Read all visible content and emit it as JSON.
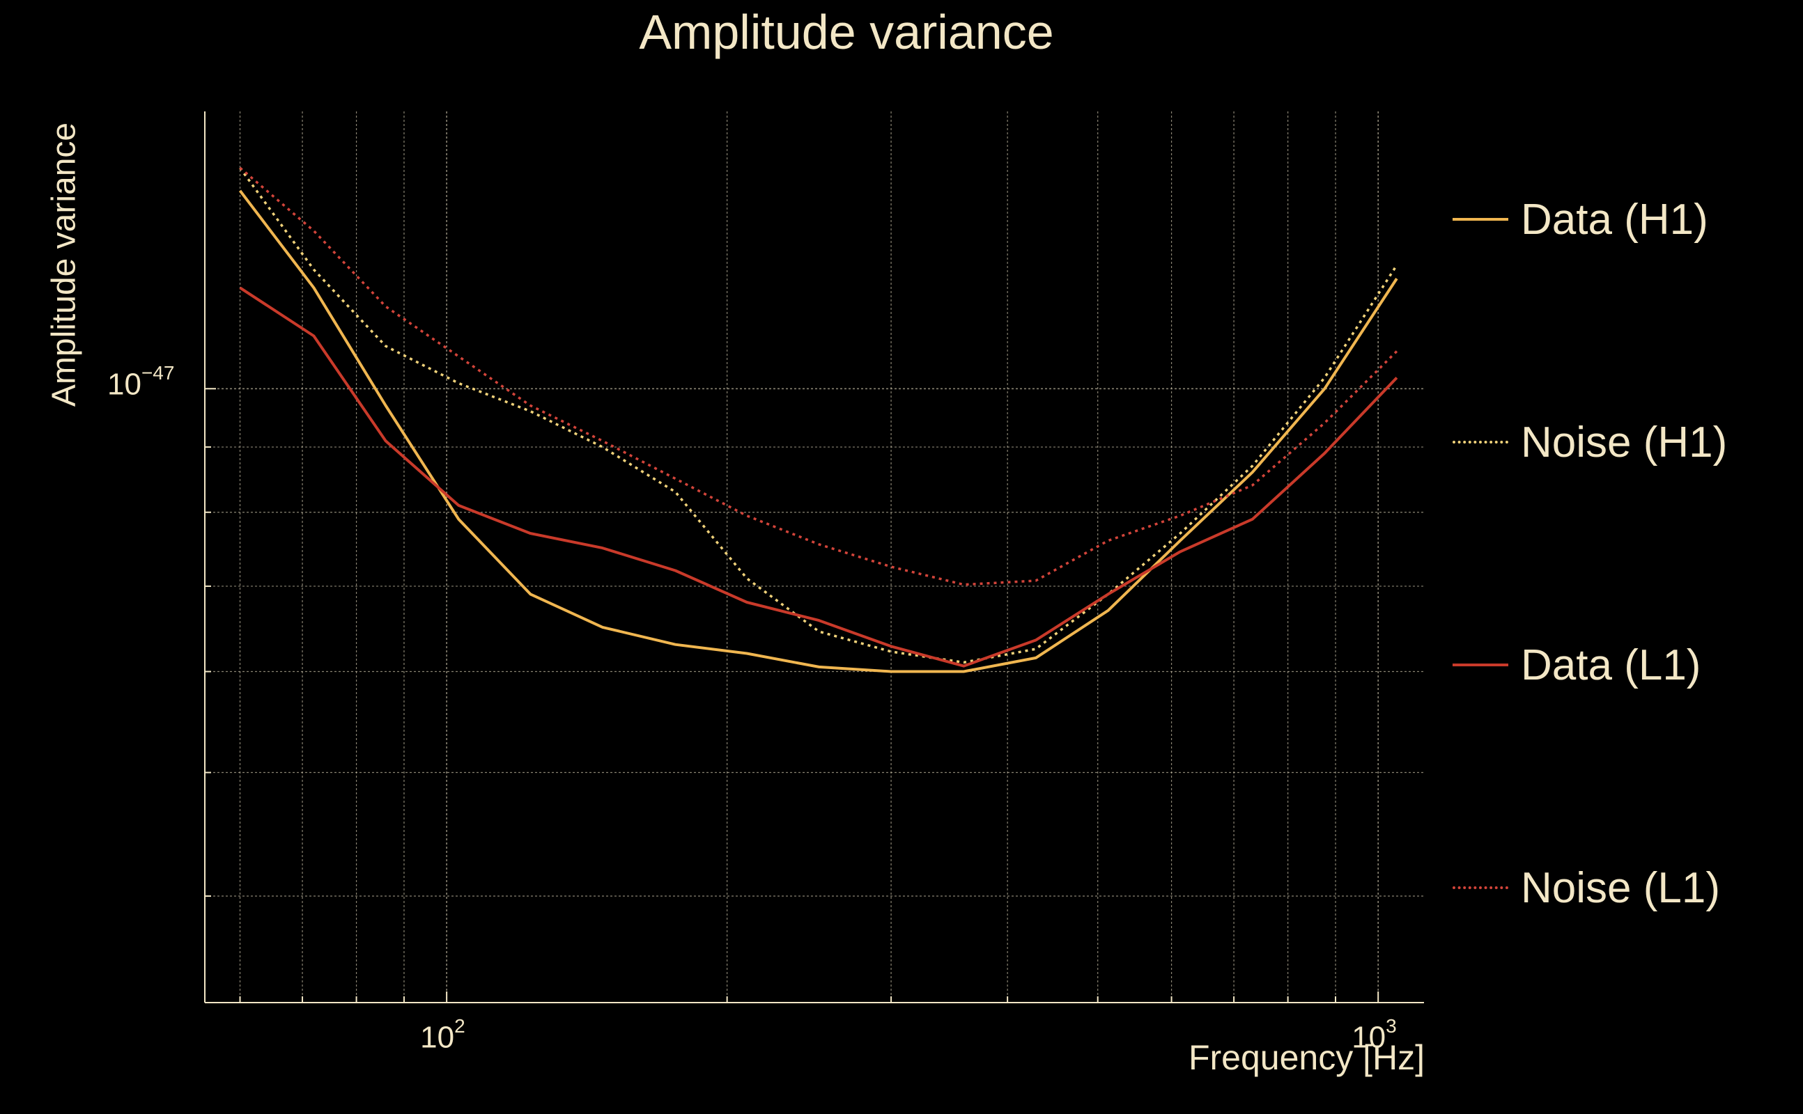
{
  "chart_data": {
    "type": "line",
    "title": "Amplitude variance",
    "xlabel": "Frequency [Hz]",
    "ylabel": "Amplitude variance",
    "xscale": "log",
    "yscale": "log",
    "xlim": [
      55,
      1120
    ],
    "ylim": [
      3.3e-48,
      1.65e-47
    ],
    "grid": true,
    "legend_position": "right",
    "x_ticks": [
      {
        "base": "10",
        "exp": "2",
        "value": 100
      },
      {
        "base": "10",
        "exp": "3",
        "value": 1000
      }
    ],
    "y_ticks": [
      {
        "base": "10",
        "exp": "−47",
        "value": 1e-47
      }
    ],
    "x": [
      60,
      72,
      86,
      103,
      123,
      147,
      176,
      210,
      251,
      300,
      359,
      429,
      513,
      613,
      733,
      876,
      1047
    ],
    "series": [
      {
        "name": "Data (H1)",
        "color": "#f0b650",
        "style": "solid",
        "values": [
          1.43e-47,
          1.2e-47,
          9.7e-48,
          7.9e-48,
          6.9e-48,
          6.5e-48,
          6.3e-48,
          6.2e-48,
          6.05e-48,
          6e-48,
          6e-48,
          6.15e-48,
          6.7e-48,
          7.6e-48,
          8.6e-48,
          1e-47,
          1.22e-47
        ]
      },
      {
        "name": "Noise (H1)",
        "color": "#f0d27a",
        "style": "dotted",
        "values": [
          1.49e-47,
          1.24e-47,
          1.08e-47,
          1.01e-47,
          9.6e-48,
          9e-48,
          8.3e-48,
          7.1e-48,
          6.45e-48,
          6.22e-48,
          6.1e-48,
          6.25e-48,
          6.9e-48,
          7.7e-48,
          8.7e-48,
          1.02e-47,
          1.25e-47
        ]
      },
      {
        "name": "Data (L1)",
        "color": "#c93a2a",
        "style": "solid",
        "values": [
          1.2e-47,
          1.1e-47,
          9.1e-48,
          8.1e-48,
          7.7e-48,
          7.5e-48,
          7.2e-48,
          6.8e-48,
          6.58e-48,
          6.28e-48,
          6.06e-48,
          6.35e-48,
          6.9e-48,
          7.45e-48,
          7.9e-48,
          8.9e-48,
          1.02e-47
        ]
      },
      {
        "name": "Noise (L1)",
        "color": "#d2443a",
        "style": "dotted",
        "values": [
          1.49e-47,
          1.33e-47,
          1.16e-47,
          1.06e-47,
          9.7e-48,
          9.1e-48,
          8.5e-48,
          7.95e-48,
          7.55e-48,
          7.25e-48,
          7.02e-48,
          7.07e-48,
          7.6e-48,
          7.95e-48,
          8.4e-48,
          9.4e-48,
          1.07e-47
        ]
      }
    ]
  }
}
